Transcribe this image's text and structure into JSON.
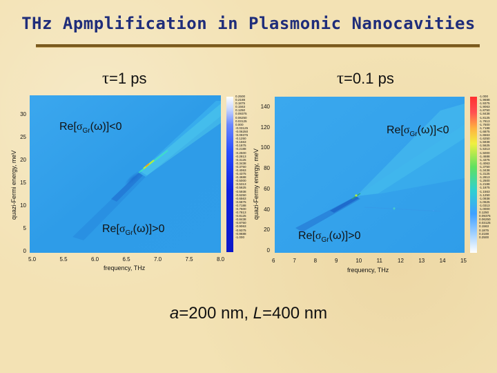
{
  "title": "THz Apmplification in Plasmonic Nanocavities",
  "caption": {
    "a_sym": "a",
    "a_rest": "=200 nm, ",
    "l_sym": "L",
    "l_rest": "=400 nm"
  },
  "colors": {
    "title": "#1f2d7a",
    "rule": "#7a5a1e",
    "background": "#f3e2b4",
    "field_base": "#2d9de8"
  },
  "left_plot": {
    "tau_symbol": "τ",
    "tau_text": "=1 ps",
    "xlabel": "frequency, THz",
    "ylabel": "quazi-Fermi energy, meV",
    "xticks": [
      "5.0",
      "5.5",
      "6.0",
      "6.5",
      "7.0",
      "7.5",
      "8.0"
    ],
    "yticks": [
      "0",
      "5",
      "10",
      "15",
      "20",
      "25",
      "30"
    ],
    "annot_top": {
      "prefix": "Re[",
      "sigma": "σ",
      "sub": "Gr",
      "suffix": "(ω)]<0"
    },
    "annot_bottom": {
      "prefix": "Re[",
      "sigma": "σ",
      "sub": "Gr",
      "suffix": "(ω)]>0"
    },
    "colorbar_labels": [
      "0.2500",
      "0.2188",
      "0.1875",
      "0.1563",
      "0.1250",
      "0.09375",
      "0.06250",
      "0.03125",
      "0.000",
      "-0.03125",
      "-0.06250",
      "-0.09375",
      "-0.1250",
      "-0.1563",
      "-0.1875",
      "-0.2188",
      "-0.2500",
      "-0.2813",
      "-0.3125",
      "-0.3438",
      "-0.3750",
      "-0.4063",
      "-0.4375",
      "-0.4688",
      "-0.5000",
      "-0.5313",
      "-0.5625",
      "-0.5938",
      "-0.6250",
      "-0.6563",
      "-0.6875",
      "-0.7188",
      "-0.7500",
      "-0.7813",
      "-0.8125",
      "-0.8438",
      "-0.8750",
      "-0.9063",
      "-0.9375",
      "-0.9688",
      "-1.000"
    ]
  },
  "right_plot": {
    "tau_symbol": "τ",
    "tau_text": "=0.1 ps",
    "xlabel": "frequency, THz",
    "ylabel": "quazi-Fermy energy, meV",
    "xticks": [
      "6",
      "7",
      "8",
      "9",
      "10",
      "11",
      "12",
      "13",
      "14",
      "15"
    ],
    "yticks": [
      "0",
      "20",
      "40",
      "60",
      "80",
      "100",
      "120",
      "140"
    ],
    "annot_top": {
      "prefix": "Re[",
      "sigma": "σ",
      "sub": "Gr",
      "suffix": "(ω)]<0"
    },
    "annot_bottom": {
      "prefix": "Re[",
      "sigma": "σ",
      "sub": "Gr",
      "suffix": "(ω)]>0"
    },
    "colorbar_labels": [
      "-1.000",
      "-1.9688",
      "-1.9375",
      "-1.9063",
      "-1.8750",
      "-1.8438",
      "-1.8125",
      "-1.7813",
      "-1.7500",
      "-1.7188",
      "-1.6875",
      "-1.6563",
      "-1.6250",
      "-1.5938",
      "-1.5625",
      "-1.5313",
      "-1.5000",
      "-1.4688",
      "-1.4375",
      "-1.4063",
      "-1.3750",
      "-1.3438",
      "-1.3125",
      "-1.2813",
      "-1.2500",
      "-1.2188",
      "-1.1875",
      "-1.1563",
      "-1.1250",
      "-1.0938",
      "-1.0625",
      "-1.0313",
      "-1.0000",
      "0.1250",
      "0.09375",
      "0.06250",
      "0.03125",
      "0.1563",
      "0.1875",
      "0.2188",
      "0.2500"
    ]
  }
}
